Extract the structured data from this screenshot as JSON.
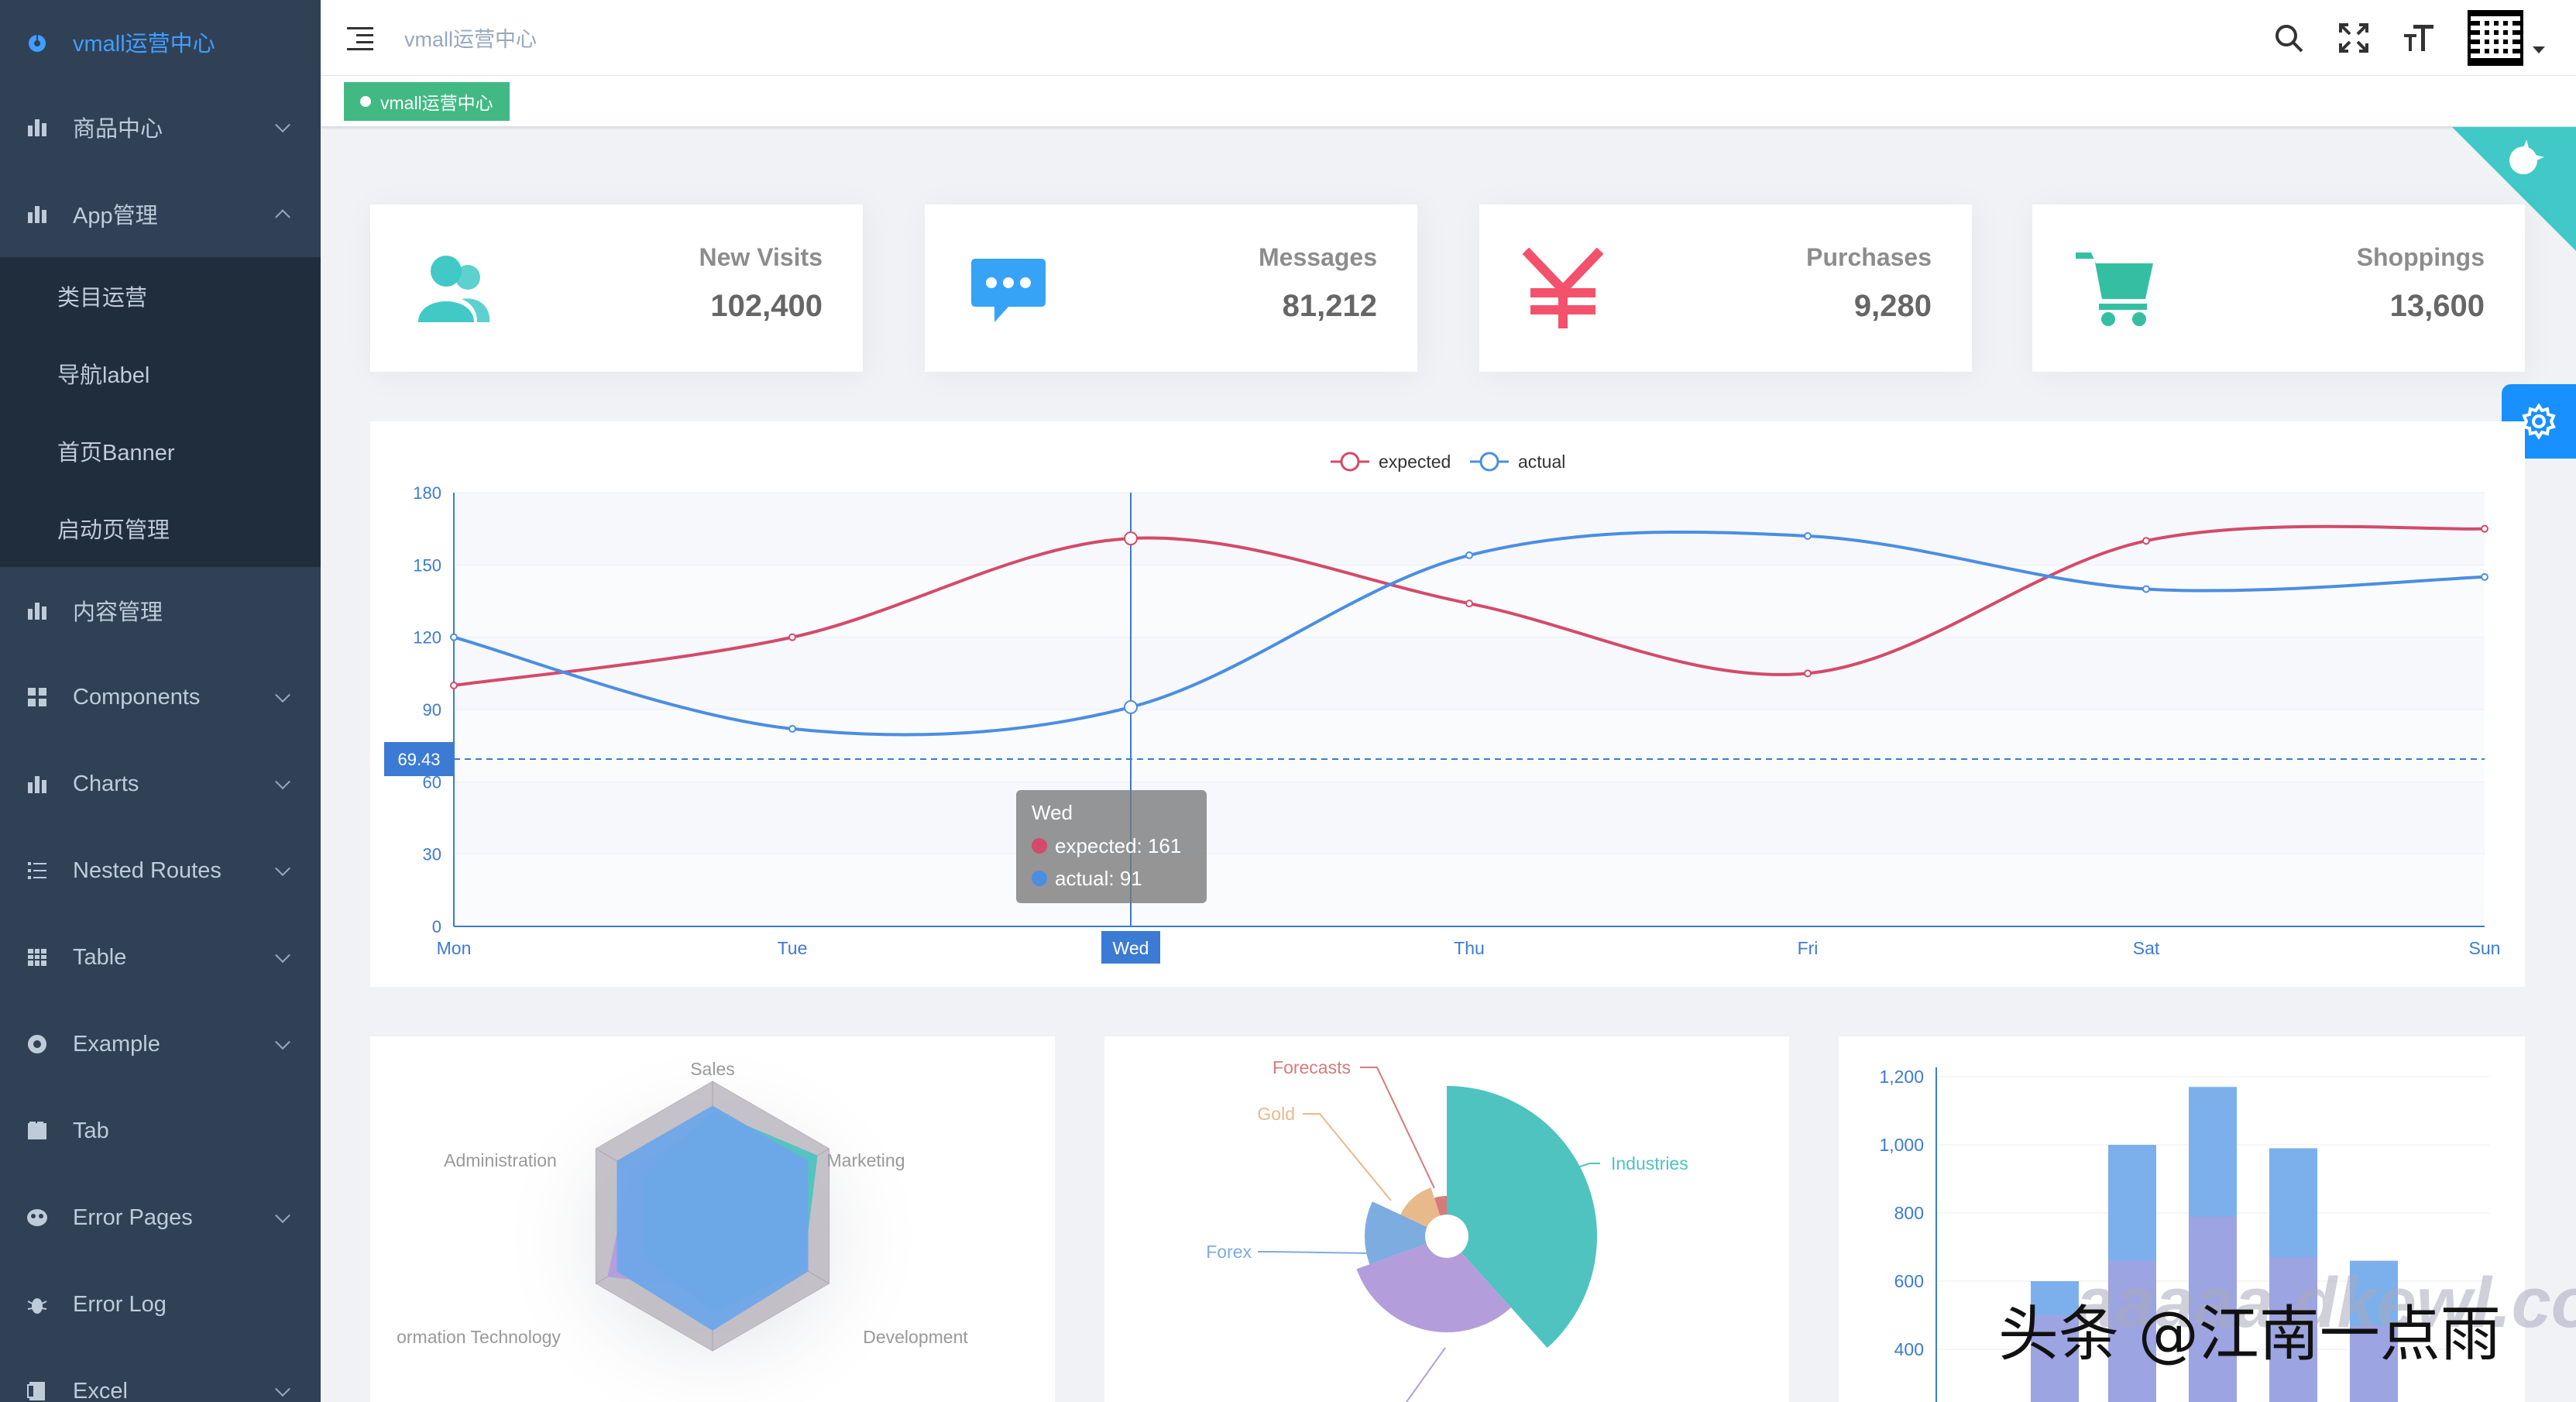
{
  "sidebar": {
    "logo_label": "vmall运营中心",
    "items": [
      {
        "label": "商品中心",
        "icon": "bar-chart-icon",
        "expandable": true
      },
      {
        "label": "App管理",
        "icon": "bar-chart-icon",
        "expandable": true,
        "open": true,
        "children": [
          "类目运营",
          "导航label",
          "首页Banner",
          "启动页管理"
        ]
      },
      {
        "label": "内容管理",
        "icon": "bar-chart-icon",
        "expandable": false
      },
      {
        "label": "Components",
        "icon": "grid-icon",
        "expandable": true
      },
      {
        "label": "Charts",
        "icon": "bar-chart-icon",
        "expandable": true
      },
      {
        "label": "Nested Routes",
        "icon": "list-icon",
        "expandable": true
      },
      {
        "label": "Table",
        "icon": "table-icon",
        "expandable": true
      },
      {
        "label": "Example",
        "icon": "example-icon",
        "expandable": true
      },
      {
        "label": "Tab",
        "icon": "tab-icon",
        "expandable": false
      },
      {
        "label": "Error Pages",
        "icon": "error-pages-icon",
        "expandable": true
      },
      {
        "label": "Error Log",
        "icon": "bug-icon",
        "expandable": false
      },
      {
        "label": "Excel",
        "icon": "excel-icon",
        "expandable": true
      }
    ]
  },
  "navbar": {
    "breadcrumb": "vmall运营中心"
  },
  "tags": [
    {
      "label": "vmall运营中心",
      "active": true
    }
  ],
  "panels": [
    {
      "label": "New Visits",
      "value": "102,400",
      "icon": "people-icon",
      "color": "#40c9c6"
    },
    {
      "label": "Messages",
      "value": "81,212",
      "icon": "message-icon",
      "color": "#36a3f7"
    },
    {
      "label": "Purchases",
      "value": "9,280",
      "icon": "money-icon",
      "color": "#f4516c"
    },
    {
      "label": "Shoppings",
      "value": "13,600",
      "icon": "shopping-cart-icon",
      "color": "#34bfa3"
    }
  ],
  "chart_data": [
    {
      "type": "line",
      "categories": [
        "Mon",
        "Tue",
        "Wed",
        "Thu",
        "Fri",
        "Sat",
        "Sun"
      ],
      "series": [
        {
          "name": "expected",
          "values": [
            100,
            120,
            161,
            134,
            105,
            160,
            165
          ],
          "color": "#d44a6a"
        },
        {
          "name": "actual",
          "values": [
            120,
            82,
            91,
            154,
            162,
            140,
            145
          ],
          "color": "#4a8ee2"
        }
      ],
      "ylim": [
        0,
        180
      ],
      "yticks": [
        0,
        30,
        60,
        90,
        120,
        150,
        180
      ],
      "legend": "top-center",
      "axis_pointer": {
        "y_value": "69.43",
        "x_label": "Wed"
      },
      "tooltip": {
        "title": "Wed",
        "lines": [
          "expected: 161",
          "actual: 91"
        ]
      }
    },
    {
      "type": "radar",
      "indicators": [
        "Sales",
        "Marketing",
        "Development",
        "",
        "ormation Technology",
        "Administration"
      ]
    },
    {
      "type": "pie",
      "labels": [
        "Industries",
        "Forecasts",
        "Gold",
        "Forex"
      ],
      "colors": [
        "#4fc3c0",
        "#d67a7a",
        "#e8b98a",
        "#7cace0"
      ]
    },
    {
      "type": "bar",
      "yticks": [
        "400",
        "600",
        "800",
        "1,000",
        "1,200"
      ]
    }
  ],
  "watermark": {
    "text": "头条 @江南一点雨",
    "bg": "aaaaa.dkewl.com"
  }
}
